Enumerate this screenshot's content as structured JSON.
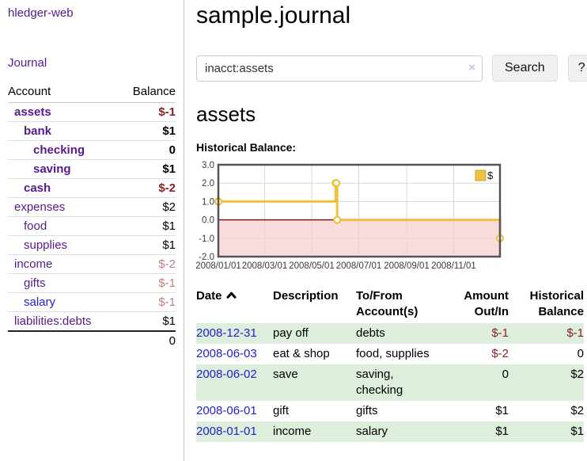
{
  "app": {
    "title": "hledger-web"
  },
  "sidebar": {
    "journal_link": "Journal",
    "accounts_header": {
      "account": "Account",
      "balance": "Balance"
    },
    "accounts": [
      {
        "name": "assets",
        "level": 0,
        "in_filter": true,
        "balance": "$-1"
      },
      {
        "name": "bank",
        "level": 1,
        "in_filter": true,
        "balance": "$1"
      },
      {
        "name": "checking",
        "level": 2,
        "in_filter": true,
        "balance": "0"
      },
      {
        "name": "saving",
        "level": 2,
        "in_filter": true,
        "balance": "$1"
      },
      {
        "name": "cash",
        "level": 1,
        "in_filter": true,
        "balance": "$-2"
      },
      {
        "name": "expenses",
        "level": 0,
        "in_filter": false,
        "balance": "$2"
      },
      {
        "name": "food",
        "level": 1,
        "in_filter": false,
        "balance": "$1"
      },
      {
        "name": "supplies",
        "level": 1,
        "in_filter": false,
        "balance": "$1"
      },
      {
        "name": "income",
        "level": 0,
        "in_filter": false,
        "balance": "$-2"
      },
      {
        "name": "gifts",
        "level": 1,
        "in_filter": false,
        "balance": "$-1"
      },
      {
        "name": "salary",
        "level": 1,
        "in_filter": false,
        "balance": "$-1",
        "unvisited": true
      },
      {
        "name": "liabilities:debts",
        "level": 0,
        "in_filter": false,
        "balance": "$1"
      }
    ],
    "total": "0"
  },
  "header": {
    "title": "sample.journal"
  },
  "search": {
    "value": "inacct:assets",
    "clear_icon": "×",
    "button": "Search",
    "help_button": "?"
  },
  "account_page": {
    "title": "assets",
    "chart_label": "Historical Balance:"
  },
  "chart_data": {
    "type": "line",
    "step": true,
    "title": "Historical Balance",
    "legend": "$",
    "legend_position": "top-right",
    "series": [
      {
        "name": "$",
        "points": [
          [
            "2008-01-01",
            1
          ],
          [
            "2008-06-01",
            2
          ],
          [
            "2008-06-02",
            2
          ],
          [
            "2008-06-03",
            0
          ],
          [
            "2008-12-31",
            -1
          ]
        ]
      }
    ],
    "xlim": [
      "2008-01-01",
      "2008-12-31"
    ],
    "ylim": [
      -2,
      3
    ],
    "x_ticks": [
      "2008/01/01",
      "2008/03/01",
      "2008/05/01",
      "2008/07/01",
      "2008/09/01",
      "2008/11/01"
    ],
    "y_ticks": [
      "3.0",
      "2.0",
      "1.0",
      "0.0",
      "-1.0",
      "-2.0"
    ],
    "grid": true,
    "colors": {
      "line": "#edc240",
      "marker_fill": "#ffffff",
      "negative_region_fill": "#fbdcdc",
      "zero_line": "#8b0000",
      "plot_border": "#545454",
      "gridline": "#d9d9d9",
      "tick_label": "#3a3a3a",
      "legend_box_border": "#c9a53a"
    }
  },
  "register": {
    "columns": [
      "Date",
      "Description",
      "To/From Account(s)",
      "Amount Out/In",
      "Historical Balance"
    ],
    "sort": {
      "column": "Date",
      "direction": "ascending"
    },
    "rows": [
      {
        "date": "2008-12-31",
        "description": "pay off",
        "accounts": "debts",
        "amount": "$-1",
        "balance": "$-1"
      },
      {
        "date": "2008-06-03",
        "description": "eat & shop",
        "accounts": "food, supplies",
        "amount": "$-2",
        "balance": "0"
      },
      {
        "date": "2008-06-02",
        "description": "save",
        "accounts": "saving, checking",
        "amount": "0",
        "balance": "$2"
      },
      {
        "date": "2008-06-01",
        "description": "gift",
        "accounts": "gifts",
        "amount": "$1",
        "balance": "$2"
      },
      {
        "date": "2008-01-01",
        "description": "income",
        "accounts": "salary",
        "amount": "$1",
        "balance": "$1"
      }
    ]
  },
  "colors": {
    "link_purple": "#551a8b",
    "link_blue": "#2222cc",
    "negative_dark": "#8b2020",
    "negative_muted": "#c17d7d",
    "row_stripe_green": "#ddeedd"
  }
}
